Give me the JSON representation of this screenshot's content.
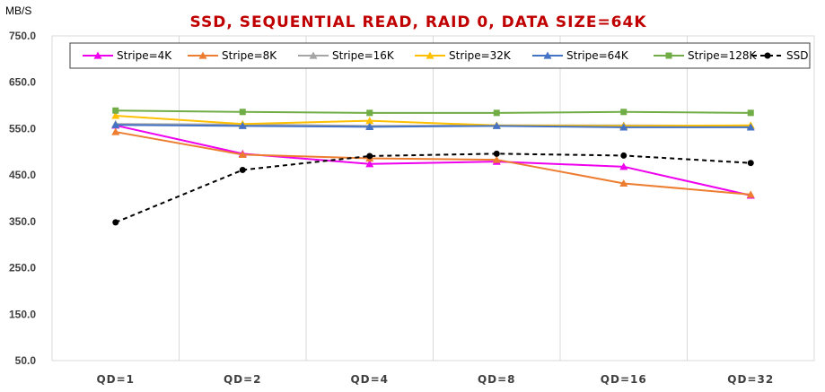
{
  "chart_data": {
    "type": "line",
    "title": "SSD, SEQUENTIAL READ, RAID 0, DATA SIZE=64K",
    "ylabel": "MB/S",
    "ylim": [
      50,
      750
    ],
    "yticks": [
      "750.0",
      "650.0",
      "550.0",
      "450.0",
      "350.0",
      "250.0",
      "150.0",
      "50.0"
    ],
    "ytick_values": [
      750,
      650,
      550,
      450,
      350,
      250,
      150,
      50
    ],
    "categories": [
      "QD=1",
      "QD=2",
      "QD=4",
      "QD=8",
      "QD=16",
      "QD=32"
    ],
    "grid": "vertical",
    "legend_position": "top",
    "series": [
      {
        "name": "Stripe=4K",
        "color": "#ee00ee",
        "marker": "triangle",
        "dashed": false,
        "values": [
          557,
          496,
          474,
          479,
          468,
          406
        ]
      },
      {
        "name": "Stripe=8K",
        "color": "#ed7d31",
        "marker": "triangle",
        "dashed": false,
        "values": [
          543,
          494,
          486,
          483,
          432,
          408
        ]
      },
      {
        "name": "Stripe=16K",
        "color": "#a5a5a5",
        "marker": "triangle",
        "dashed": false,
        "values": [
          560,
          559,
          556,
          557,
          557,
          556
        ]
      },
      {
        "name": "Stripe=32K",
        "color": "#ffc000",
        "marker": "triangle",
        "dashed": false,
        "values": [
          578,
          560,
          567,
          557,
          556,
          557
        ]
      },
      {
        "name": "Stripe=64K",
        "color": "#4472c4",
        "marker": "triangle",
        "dashed": false,
        "values": [
          558,
          556,
          554,
          556,
          553,
          553
        ]
      },
      {
        "name": "Stripe=128K",
        "color": "#70ad47",
        "marker": "square",
        "dashed": false,
        "values": [
          589,
          586,
          584,
          584,
          586,
          584
        ]
      },
      {
        "name": "SSD",
        "color": "#000000",
        "marker": "circle",
        "dashed": true,
        "values": [
          348,
          461,
          491,
          496,
          492,
          476
        ]
      }
    ],
    "title_color": "#c00000",
    "axis_text_color": "#404040"
  }
}
